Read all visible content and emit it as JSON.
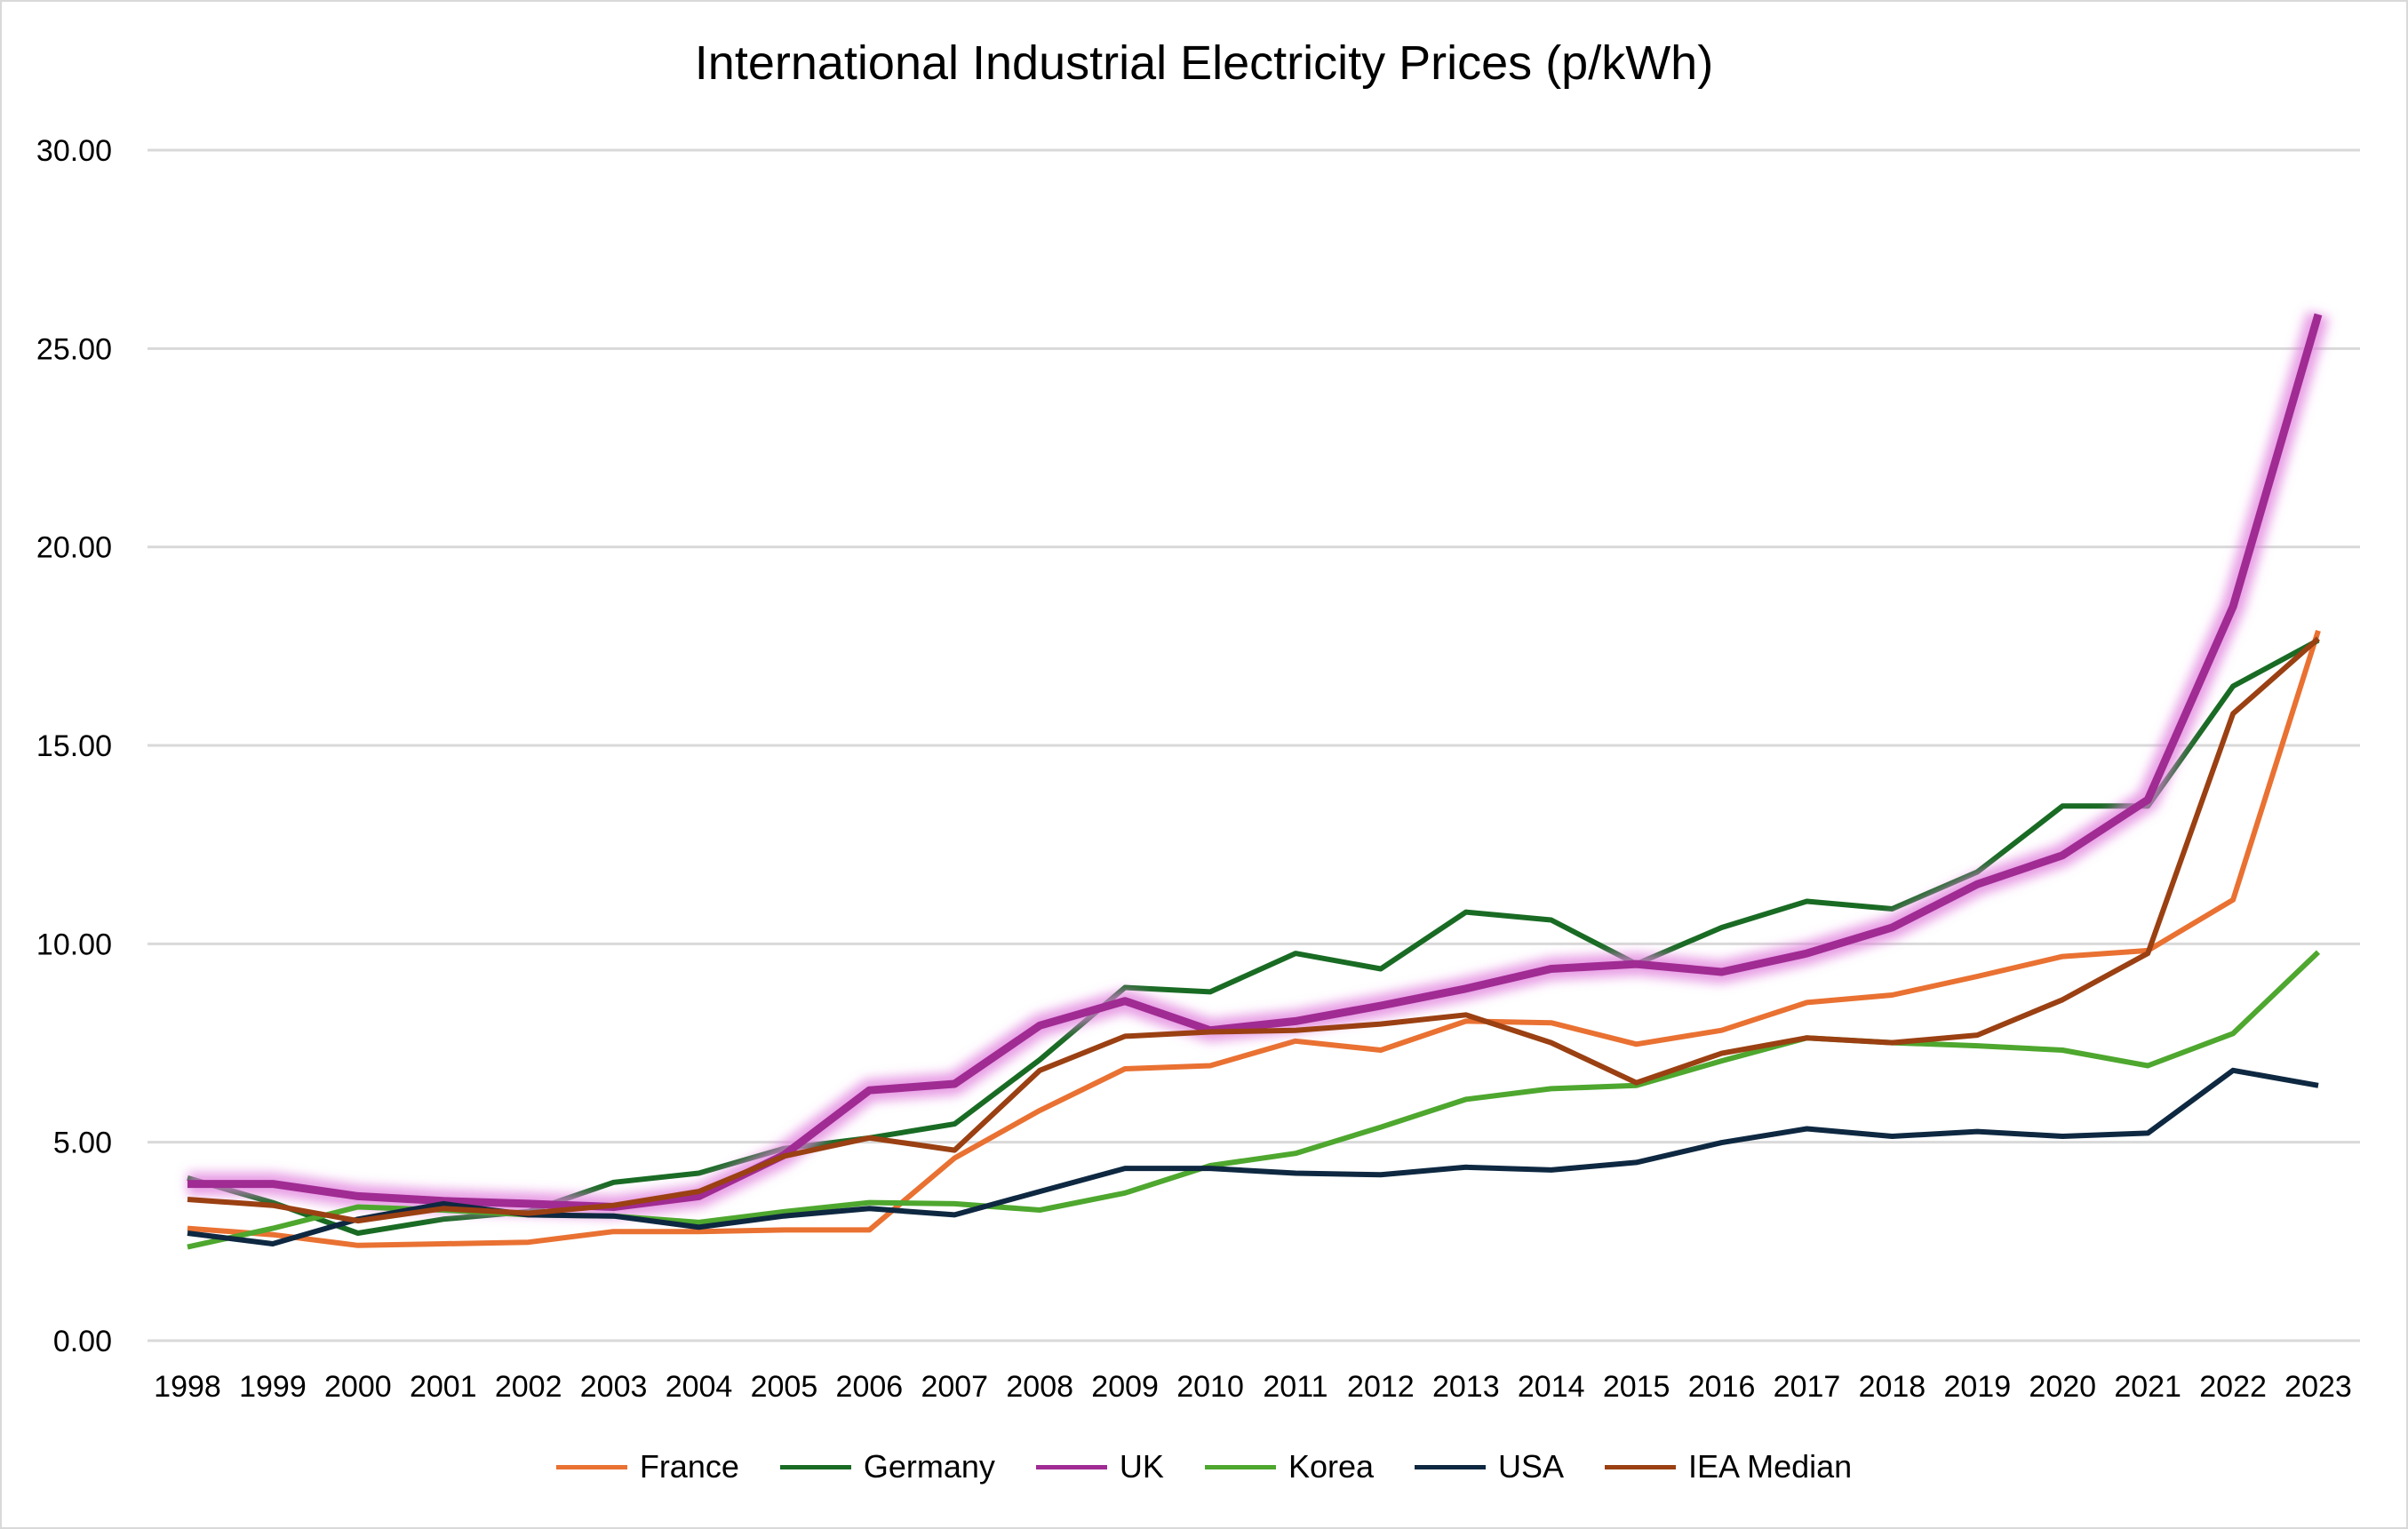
{
  "chart_data": {
    "type": "line",
    "title": "International Industrial Electricity Prices (p/kWh)",
    "xlabel": "",
    "ylabel": "",
    "ylim": [
      0,
      30
    ],
    "yticks": [
      "0.00",
      "5.00",
      "10.00",
      "15.00",
      "20.00",
      "25.00",
      "30.00"
    ],
    "grid": true,
    "legend_position": "bottom",
    "categories": [
      "1998",
      "1999",
      "2000",
      "2001",
      "2002",
      "2003",
      "2004",
      "2005",
      "2006",
      "2007",
      "2008",
      "2009",
      "2010",
      "2011",
      "2012",
      "2013",
      "2014",
      "2015",
      "2016",
      "2017",
      "2018",
      "2019",
      "2020",
      "2021",
      "2022",
      "2023"
    ],
    "series": [
      {
        "name": "France",
        "color": "#E97132",
        "values": [
          2.83,
          2.67,
          2.4,
          2.44,
          2.48,
          2.75,
          2.75,
          2.79,
          2.79,
          4.6,
          5.8,
          6.85,
          6.93,
          7.55,
          7.32,
          8.05,
          8.01,
          7.47,
          7.82,
          8.52,
          8.71,
          9.18,
          9.68,
          9.83,
          11.11,
          17.89
        ]
      },
      {
        "name": "Germany",
        "color": "#196B24",
        "values": [
          4.1,
          3.48,
          2.71,
          3.06,
          3.25,
          3.99,
          4.22,
          4.84,
          5.11,
          5.46,
          7.08,
          8.9,
          8.79,
          9.76,
          9.37,
          10.8,
          10.6,
          9.49,
          10.41,
          11.07,
          10.88,
          11.81,
          13.47,
          13.47,
          16.49,
          17.65
        ]
      },
      {
        "name": "UK",
        "color": "#A02B93",
        "highlighted": true,
        "values": [
          3.95,
          3.95,
          3.64,
          3.52,
          3.45,
          3.37,
          3.64,
          4.68,
          6.31,
          6.47,
          7.94,
          8.56,
          7.82,
          8.05,
          8.44,
          8.87,
          9.37,
          9.49,
          9.29,
          9.76,
          10.41,
          11.5,
          12.23,
          13.63,
          18.5,
          25.86
        ]
      },
      {
        "name": "Korea",
        "color": "#4EA72E",
        "values": [
          2.36,
          2.83,
          3.37,
          3.29,
          3.17,
          3.14,
          2.98,
          3.25,
          3.48,
          3.45,
          3.29,
          3.72,
          4.41,
          4.72,
          5.38,
          6.08,
          6.35,
          6.43,
          7.05,
          7.63,
          7.51,
          7.43,
          7.32,
          6.93,
          7.74,
          9.79
        ]
      },
      {
        "name": "USA",
        "color": "#0E2841",
        "values": [
          2.71,
          2.44,
          3.06,
          3.45,
          3.17,
          3.14,
          2.86,
          3.14,
          3.33,
          3.17,
          3.76,
          4.34,
          4.34,
          4.22,
          4.18,
          4.37,
          4.3,
          4.49,
          4.99,
          5.34,
          5.15,
          5.27,
          5.15,
          5.23,
          6.81,
          6.43
        ]
      },
      {
        "name": "IEA Median",
        "color": "#9A4012",
        "values": [
          3.56,
          3.41,
          3.02,
          3.33,
          3.21,
          3.41,
          3.76,
          4.65,
          5.11,
          4.8,
          6.81,
          7.67,
          7.78,
          7.82,
          7.98,
          8.21,
          7.51,
          6.5,
          7.24,
          7.63,
          7.51,
          7.7,
          8.59,
          9.76,
          15.8,
          17.69
        ]
      }
    ]
  }
}
